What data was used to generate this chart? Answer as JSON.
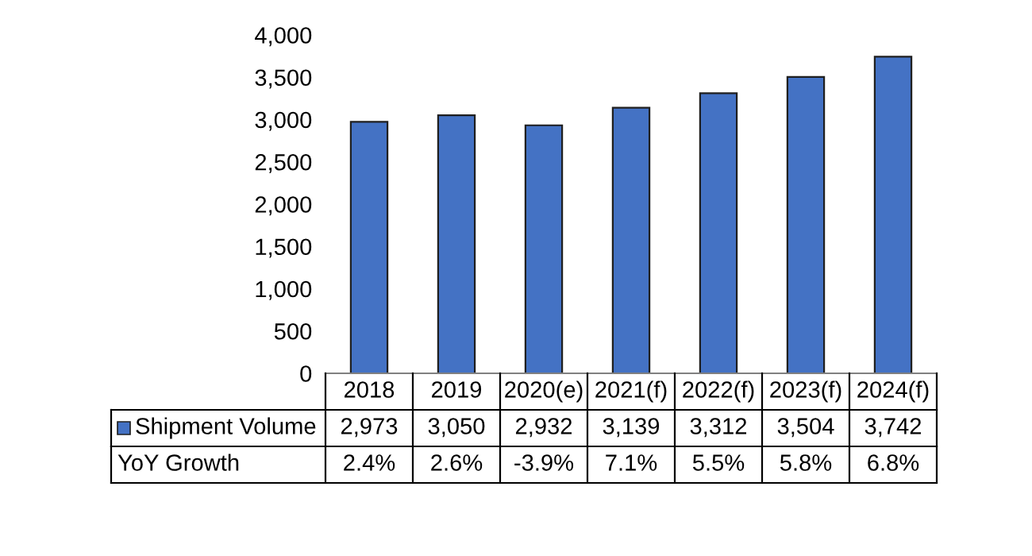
{
  "chart_data": {
    "type": "bar",
    "categories": [
      "2018",
      "2019",
      "2020(e)",
      "2021(f)",
      "2022(f)",
      "2023(f)",
      "2024(f)"
    ],
    "series": [
      {
        "name": "Shipment Volume",
        "color": "#4472c4",
        "values": [
          2973,
          3050,
          2932,
          3139,
          3312,
          3504,
          3742
        ],
        "value_labels": [
          "2,973",
          "3,050",
          "2,932",
          "3,139",
          "3,312",
          "3,504",
          "3,742"
        ]
      }
    ],
    "annotations": [
      "YoY Growth",
      "2.4%",
      "2.6%",
      "-3.9%",
      "7.1%",
      "5.5%",
      "5.8%",
      "6.8%"
    ],
    "ylim": [
      0,
      4000
    ],
    "yticks": [
      {
        "value": 0,
        "label": "0"
      },
      {
        "value": 500,
        "label": "500"
      },
      {
        "value": 1000,
        "label": "1,000"
      },
      {
        "value": 1500,
        "label": "1,500"
      },
      {
        "value": 2000,
        "label": "2,000"
      },
      {
        "value": 2500,
        "label": "2,500"
      },
      {
        "value": 3000,
        "label": "3,000"
      },
      {
        "value": 3500,
        "label": "3,500"
      },
      {
        "value": 4000,
        "label": "4,000"
      }
    ],
    "data_labels": true,
    "grid": false,
    "legend": "bottom"
  }
}
